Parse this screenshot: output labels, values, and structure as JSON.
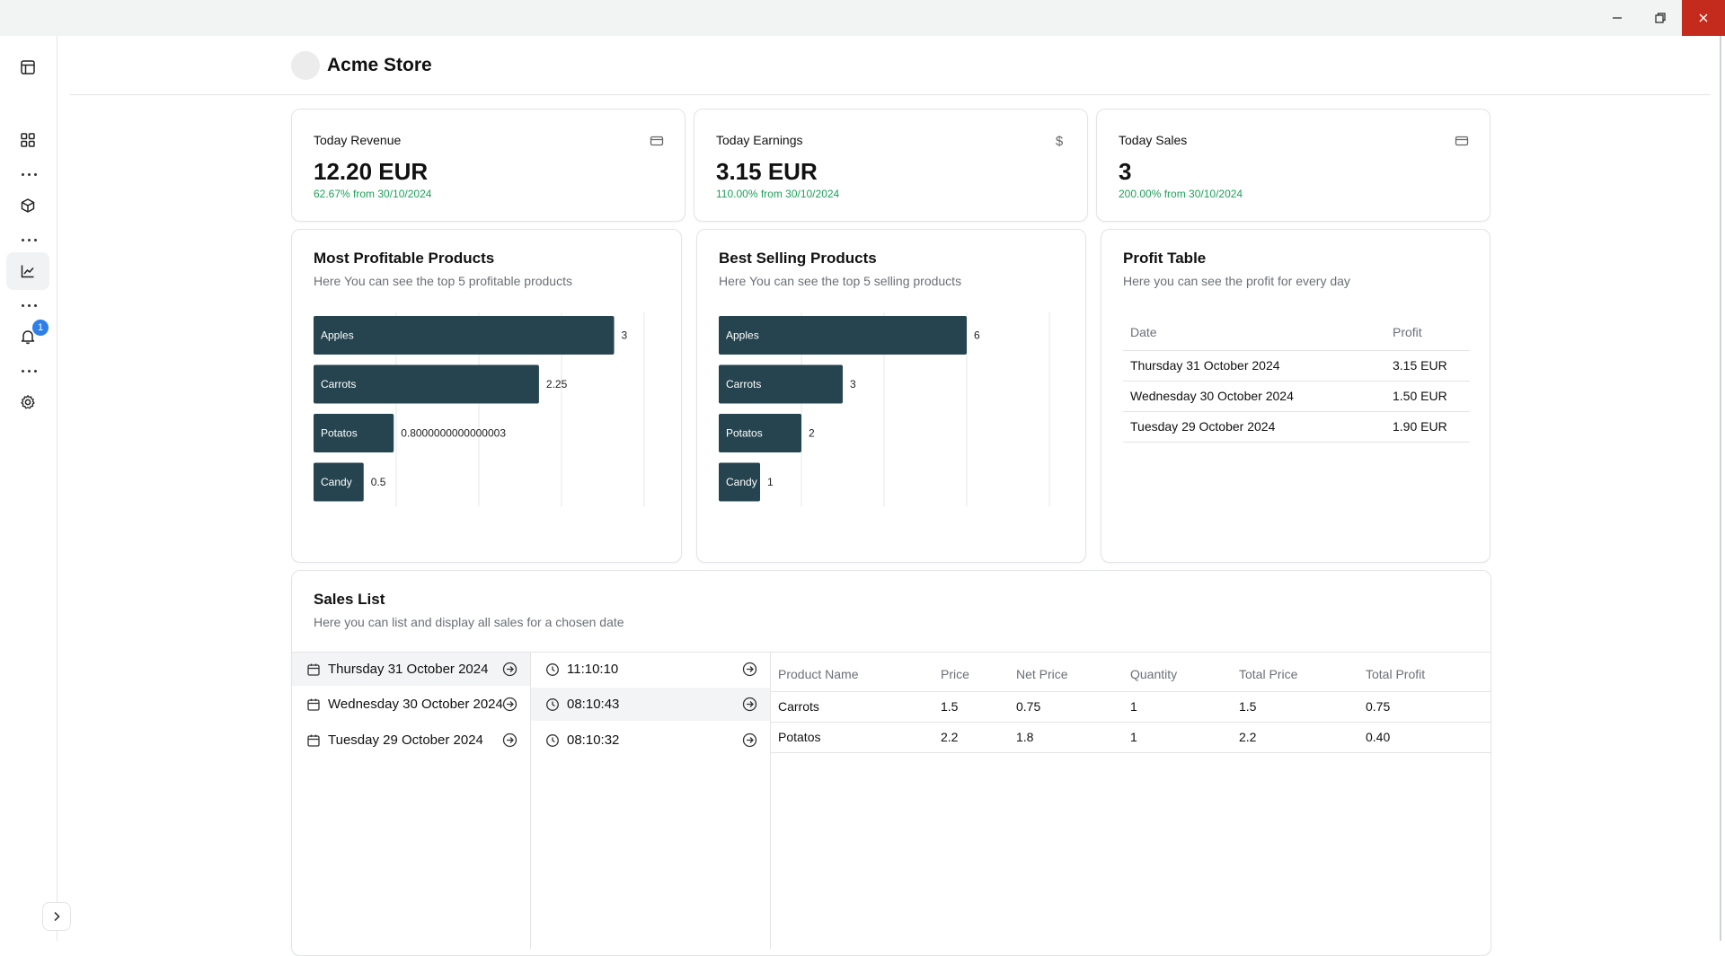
{
  "header": {
    "store_name": "Acme Store"
  },
  "sidebar": {
    "items": [
      {
        "icon": "layout-icon"
      },
      {
        "icon": "dashboard-icon"
      },
      {
        "icon": "package-icon"
      },
      {
        "icon": "chart-icon"
      },
      {
        "icon": "bell-icon",
        "badge": "1"
      },
      {
        "icon": "settings-icon"
      }
    ]
  },
  "kpis": [
    {
      "title": "Today Revenue",
      "value": "12.20 EUR",
      "change": "62.67% from 30/10/2024",
      "icon": "card-icon"
    },
    {
      "title": "Today Earnings",
      "value": "3.15 EUR",
      "change": "110.00% from 30/10/2024",
      "icon": "dollar-icon"
    },
    {
      "title": "Today Sales",
      "value": "3",
      "change": "200.00% from 30/10/2024",
      "icon": "card-icon"
    }
  ],
  "profitable": {
    "title": "Most Profitable Products",
    "subtitle": "Here You can see the top 5 profitable products"
  },
  "selling": {
    "title": "Best Selling Products",
    "subtitle": "Here You can see the top 5 selling products"
  },
  "chart_data": [
    {
      "type": "bar",
      "orientation": "horizontal",
      "categories": [
        "Apples",
        "Carrots",
        "Potatos",
        "Candy"
      ],
      "values": [
        3,
        2.25,
        0.8000000000000003,
        0.5
      ],
      "value_labels": [
        "3",
        "2.25",
        "0.8000000000000003",
        "0.5"
      ],
      "xlim": [
        0,
        3.3
      ],
      "grid": true,
      "color": "#25444f"
    },
    {
      "type": "bar",
      "orientation": "horizontal",
      "categories": [
        "Apples",
        "Carrots",
        "Potatos",
        "Candy"
      ],
      "values": [
        6,
        3,
        2,
        1
      ],
      "value_labels": [
        "6",
        "3",
        "2",
        "1"
      ],
      "xlim": [
        0,
        8
      ],
      "grid": true,
      "color": "#25444f"
    }
  ],
  "profit_table": {
    "title": "Profit Table",
    "subtitle": "Here you can see the profit for every day",
    "headers": [
      "Date",
      "Profit"
    ],
    "rows": [
      [
        "Thursday 31 October 2024",
        "3.15 EUR"
      ],
      [
        "Wednesday 30 October 2024",
        "1.50 EUR"
      ],
      [
        "Tuesday 29 October 2024",
        "1.90 EUR"
      ]
    ]
  },
  "sales_list": {
    "title": "Sales List",
    "subtitle": "Here you can list and display all sales for a chosen date",
    "dates": [
      "Thursday 31 October 2024",
      "Wednesday 30 October 2024",
      "Tuesday 29 October 2024"
    ],
    "times": [
      "11:10:10",
      "08:10:43",
      "08:10:32"
    ],
    "headers": [
      "Product Name",
      "Price",
      "Net Price",
      "Quantity",
      "Total Price",
      "Total Profit"
    ],
    "rows": [
      [
        "Carrots",
        "1.5",
        "0.75",
        "1",
        "1.5",
        "0.75"
      ],
      [
        "Potatos",
        "2.2",
        "1.8",
        "1",
        "2.2",
        "0.40"
      ]
    ]
  }
}
